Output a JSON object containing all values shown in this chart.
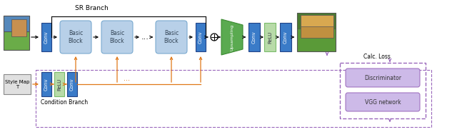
{
  "blue": "#3a7bc8",
  "light_blue": "#b8d0e8",
  "light_blue_edge": "#7aaad0",
  "green_up": "#5aaa50",
  "green_up_edge": "#3a8a30",
  "light_green": "#b8dba8",
  "light_green_edge": "#7abb6a",
  "purple": "#9966bb",
  "light_purple": "#cdbae8",
  "orange": "#e07818",
  "black": "#222222",
  "white": "#ffffff",
  "gray_box": "#e0e0e0",
  "gray_edge": "#888888",
  "sr_branch_label": "SR Branch",
  "condition_branch_label": "Condition Branch",
  "calc_loss_label": "Calc. Loss",
  "discriminator_label": "Discriminator",
  "vgg_label": "VGG network",
  "style_map_label": "Style Map\nT",
  "upsampling_label": "Upsampling",
  "conv_label": "Conv",
  "relu_label": "ReLU",
  "basic_block_label": "Basic\nBlock",
  "dots": "...",
  "img_in_colors": [
    "#5a9a3a",
    "#4488cc",
    "#7ab848"
  ],
  "img_out_colors": [
    "#4a8830",
    "#88aa44",
    "#c8a840",
    "#6699aa"
  ]
}
